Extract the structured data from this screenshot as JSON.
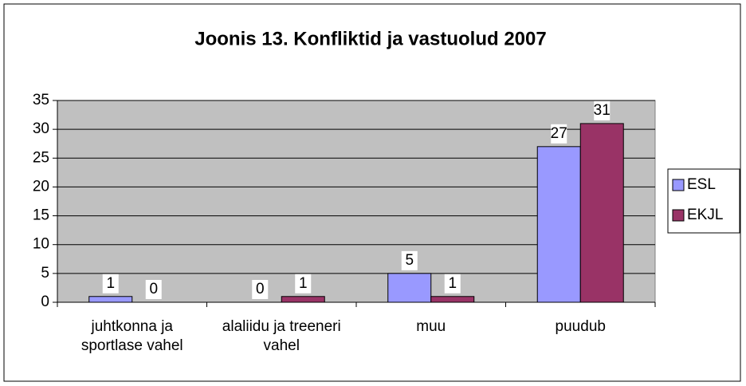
{
  "chart_data": {
    "type": "bar",
    "title": "Joonis 13. Konfliktid ja vastuolud 2007",
    "categories": [
      "juhtkonna ja sportlase vahel",
      "alaliidu ja treeneri vahel",
      "muu",
      "puudub"
    ],
    "series": [
      {
        "name": "ESL",
        "color": "#9999ff",
        "values": [
          1,
          0,
          5,
          27
        ]
      },
      {
        "name": "EKJL",
        "color": "#993366",
        "values": [
          0,
          1,
          1,
          31
        ]
      }
    ],
    "ylim": [
      0,
      35
    ],
    "yticks": [
      0,
      5,
      10,
      15,
      20,
      25,
      30,
      35
    ],
    "grid": true,
    "legend": "right"
  }
}
